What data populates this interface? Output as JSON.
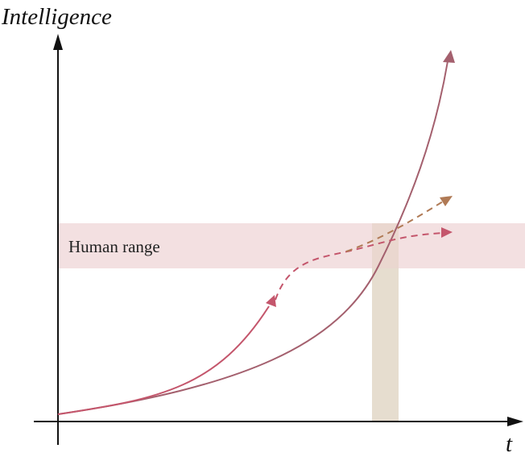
{
  "axes": {
    "y_label": "Intelligence",
    "x_label": "t"
  },
  "bands": {
    "human_range": "Human range"
  }
}
